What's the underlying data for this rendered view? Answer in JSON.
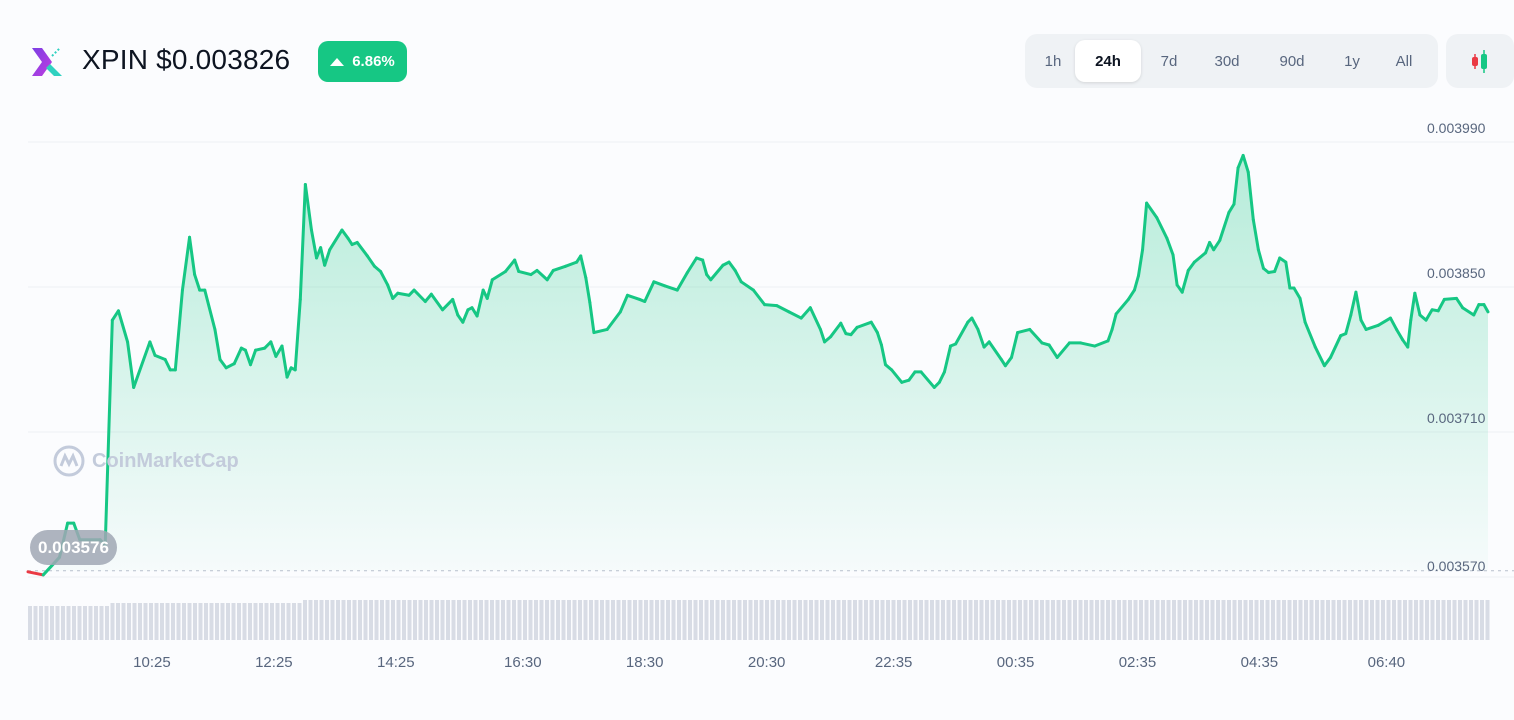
{
  "header": {
    "symbol": "XPIN",
    "price": "$0.003826",
    "change": "6.86%",
    "change_direction": "up",
    "accent_color": "#16c784"
  },
  "range_selector": {
    "options": [
      "1h",
      "24h",
      "7d",
      "30d",
      "90d",
      "1y",
      "All"
    ],
    "selected": "24h"
  },
  "chart_type_icon": "candlestick-icon",
  "watermark": "CoinMarketCap",
  "chart_data": {
    "type": "area",
    "title": "",
    "xlabel": "",
    "ylabel": "",
    "x_tick_labels": [
      "10:25",
      "12:25",
      "14:25",
      "16:30",
      "18:30",
      "20:30",
      "22:35",
      "00:35",
      "02:35",
      "04:35",
      "06:40"
    ],
    "y_tick_labels": [
      "0.003990",
      "0.003850",
      "0.003710",
      "0.003570"
    ],
    "ylim": [
      0.00357,
      0.00399
    ],
    "reference_line": {
      "value": 0.003576,
      "label": "0.003576",
      "style": "dotted"
    },
    "colors": {
      "up": "#16c784",
      "down": "#ea3943",
      "volume": "#d8dce5"
    },
    "grid": "horizontal",
    "series": [
      {
        "x": [
          "08:23",
          "08:38",
          "08:54",
          "09:02",
          "09:08",
          "09:14",
          "09:34",
          "09:39",
          "09:46",
          "09:52",
          "10:01",
          "10:07",
          "10:23",
          "10:28",
          "10:38",
          "10:43",
          "10:48",
          "10:55",
          "11:02",
          "11:07",
          "11:12",
          "11:17",
          "11:27",
          "11:32",
          "11:38",
          "11:46",
          "11:53",
          "11:57",
          "12:02",
          "12:07",
          "12:16",
          "12:22",
          "12:27",
          "12:33",
          "12:38",
          "12:42",
          "12:46",
          "12:51",
          "12:56",
          "13:02",
          "13:07",
          "13:11",
          "13:15",
          "13:20",
          "13:32",
          "13:38",
          "13:42",
          "13:47",
          "13:57",
          "14:04",
          "14:10",
          "14:17",
          "14:22",
          "14:27",
          "14:38",
          "14:43",
          "14:54",
          "15:00",
          "15:11",
          "15:21",
          "15:26",
          "15:31",
          "15:36",
          "15:40",
          "15:45",
          "15:51",
          "15:55",
          "16:00",
          "16:13",
          "16:22",
          "16:26",
          "16:38",
          "16:44",
          "16:54",
          "17:00",
          "17:12",
          "17:23",
          "17:27",
          "17:32",
          "17:36",
          "17:40",
          "17:53",
          "18:06",
          "18:13",
          "18:25",
          "18:30",
          "18:39",
          "18:50",
          "19:02",
          "19:12",
          "19:21",
          "19:27",
          "19:31",
          "19:35",
          "19:47",
          "19:53",
          "19:59",
          "20:05",
          "20:17",
          "20:28",
          "20:40",
          "20:52",
          "21:04",
          "21:13",
          "21:23",
          "21:27",
          "21:33",
          "21:43",
          "21:48",
          "21:53",
          "21:59",
          "22:13",
          "22:19",
          "22:23",
          "22:27",
          "22:33",
          "22:43",
          "22:50",
          "22:56",
          "23:02",
          "23:15",
          "23:20",
          "23:25",
          "23:31",
          "23:36",
          "23:48",
          "23:52",
          "23:58",
          "00:04",
          "00:09",
          "00:21",
          "00:25",
          "00:31",
          "00:37",
          "00:49",
          "01:01",
          "01:08",
          "01:16",
          "01:28",
          "01:39",
          "01:53",
          "02:06",
          "02:10",
          "02:14",
          "02:26",
          "02:32",
          "02:36",
          "02:40",
          "02:44",
          "02:54",
          "03:04",
          "03:10",
          "03:14",
          "03:19",
          "03:25",
          "03:31",
          "03:42",
          "03:46",
          "03:50",
          "03:56",
          "04:05",
          "04:10",
          "04:14",
          "04:19",
          "04:24",
          "04:29",
          "04:34",
          "04:39",
          "04:44",
          "04:50",
          "04:55",
          "05:01",
          "05:05",
          "05:09",
          "05:15",
          "05:20",
          "05:30",
          "05:39",
          "05:45",
          "05:55",
          "06:00",
          "06:05",
          "06:10",
          "06:15",
          "06:20",
          "06:32",
          "06:44",
          "06:50",
          "06:56",
          "07:01",
          "07:04",
          "07:08",
          "07:13",
          "07:19",
          "07:25",
          "07:31",
          "07:37",
          "07:49",
          "07:55",
          "08:06",
          "08:11",
          "08:16",
          "08:20"
        ],
        "y": [
          0.003575,
          0.003572,
          0.003589,
          0.003622,
          0.003622,
          0.003606,
          0.003606,
          0.003601,
          0.003818,
          0.003827,
          0.003797,
          0.003753,
          0.003797,
          0.003784,
          0.00378,
          0.00377,
          0.00377,
          0.003847,
          0.003898,
          0.003862,
          0.003847,
          0.003847,
          0.003809,
          0.00378,
          0.003772,
          0.003776,
          0.003791,
          0.003789,
          0.003775,
          0.003789,
          0.003791,
          0.003797,
          0.003783,
          0.003793,
          0.003763,
          0.003772,
          0.00377,
          0.003838,
          0.003949,
          0.003905,
          0.003878,
          0.003888,
          0.003871,
          0.003886,
          0.003905,
          0.003897,
          0.003891,
          0.003893,
          0.00388,
          0.00387,
          0.003865,
          0.003852,
          0.003839,
          0.003844,
          0.003842,
          0.003847,
          0.003836,
          0.003843,
          0.003828,
          0.003838,
          0.003823,
          0.003816,
          0.003828,
          0.00383,
          0.003822,
          0.003847,
          0.003839,
          0.003857,
          0.003865,
          0.003876,
          0.003865,
          0.003862,
          0.003866,
          0.003857,
          0.003866,
          0.00387,
          0.003874,
          0.00388,
          0.003859,
          0.003835,
          0.003806,
          0.003809,
          0.003826,
          0.003842,
          0.003838,
          0.003836,
          0.003855,
          0.003851,
          0.003847,
          0.003864,
          0.003878,
          0.003876,
          0.003862,
          0.003857,
          0.003871,
          0.003874,
          0.003866,
          0.003855,
          0.003847,
          0.003833,
          0.003832,
          0.003826,
          0.00382,
          0.00383,
          0.003809,
          0.003797,
          0.003802,
          0.003815,
          0.003805,
          0.003804,
          0.003811,
          0.003816,
          0.003806,
          0.003794,
          0.003775,
          0.00377,
          0.003758,
          0.00376,
          0.003768,
          0.003768,
          0.003753,
          0.003758,
          0.003768,
          0.003793,
          0.003795,
          0.003816,
          0.00382,
          0.003809,
          0.003792,
          0.003797,
          0.00378,
          0.003774,
          0.003782,
          0.003806,
          0.003809,
          0.003796,
          0.003794,
          0.003782,
          0.003796,
          0.003796,
          0.003793,
          0.003798,
          0.003809,
          0.003824,
          0.003838,
          0.003847,
          0.003861,
          0.003886,
          0.003931,
          0.003917,
          0.003897,
          0.003881,
          0.003852,
          0.003845,
          0.003866,
          0.003874,
          0.003883,
          0.003893,
          0.003886,
          0.003895,
          0.003922,
          0.00393,
          0.003965,
          0.003977,
          0.003961,
          0.003915,
          0.003886,
          0.003868,
          0.003864,
          0.003865,
          0.003878,
          0.003874,
          0.003849,
          0.003849,
          0.003839,
          0.003816,
          0.003792,
          0.003774,
          0.003782,
          0.003803,
          0.003805,
          0.003823,
          0.003845,
          0.003818,
          0.003809,
          0.003813,
          0.00382,
          0.003809,
          0.003799,
          0.003792,
          0.003818,
          0.003844,
          0.003823,
          0.003818,
          0.003828,
          0.003827,
          0.003838,
          0.003839,
          0.00383,
          0.003823,
          0.003833,
          0.003833,
          0.003826
        ]
      }
    ]
  }
}
